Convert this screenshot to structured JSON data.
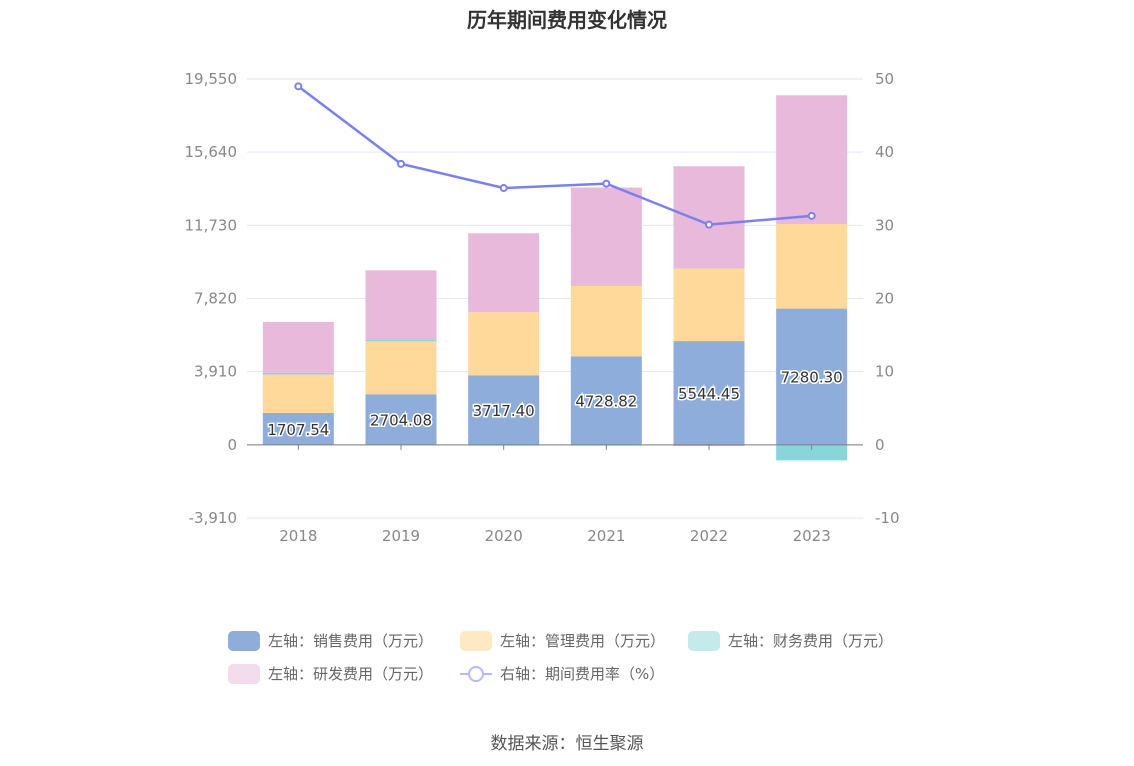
{
  "source_text": "数据来源：恒生聚源",
  "chart_data": {
    "type": "bar",
    "title": "历年期间费用变化情况",
    "categories": [
      "2018",
      "2019",
      "2020",
      "2021",
      "2022",
      "2023"
    ],
    "left_axis": {
      "ticks": [
        "19,550",
        "15,640",
        "11,730",
        "7,820",
        "3,910",
        "0",
        "-3,910"
      ],
      "ylim": [
        -3910,
        19550
      ]
    },
    "right_axis": {
      "ticks": [
        "50",
        "40",
        "30",
        "20",
        "10",
        "0",
        "-10"
      ],
      "ylim": [
        -10,
        50
      ]
    },
    "series": [
      {
        "name": "左轴：销售费用（万元）",
        "kind": "bar",
        "axis": "left",
        "color": "#8eaddb",
        "values": [
          1707.54,
          2704.08,
          3717.4,
          4728.82,
          5544.45,
          7280.3
        ],
        "labels": [
          "1707.54",
          "2704.08",
          "3717.40",
          "4728.82",
          "5544.45",
          "7280.30"
        ]
      },
      {
        "name": "左轴：管理费用（万元）",
        "kind": "bar",
        "axis": "left",
        "color": "#ffd99a",
        "values": [
          2050,
          2830,
          3370,
          3760,
          3880,
          4520
        ]
      },
      {
        "name": "左轴：财务费用（万元）",
        "kind": "bar",
        "axis": "left",
        "color": "#88d6d9",
        "values": [
          90,
          70,
          -20,
          -40,
          -60,
          -830
        ]
      },
      {
        "name": "左轴：研发费用（万元）",
        "kind": "bar",
        "axis": "left",
        "color": "#e8b9db",
        "values": [
          2720,
          3720,
          4220,
          5260,
          5460,
          6880
        ]
      },
      {
        "name": "右轴：期间费用率（%）",
        "kind": "line",
        "axis": "right",
        "color": "#7b80ee",
        "values": [
          49.0,
          38.4,
          35.1,
          35.7,
          30.1,
          31.3
        ]
      }
    ]
  }
}
